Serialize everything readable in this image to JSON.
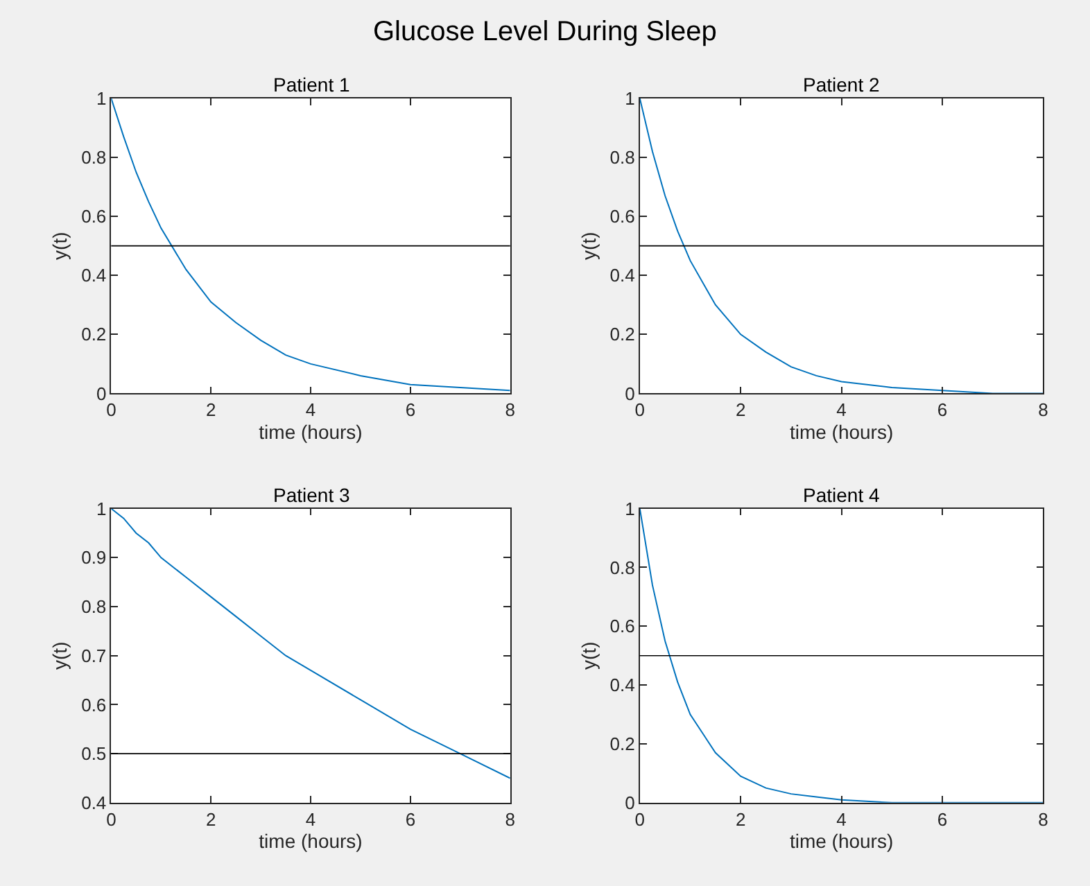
{
  "chart_data": [
    {
      "type": "other",
      "title": "Glucose Level During Sleep"
    },
    {
      "type": "line",
      "title": "Patient 1",
      "xlabel": "time (hours)",
      "ylabel": "y(t)",
      "x": [
        0,
        0.25,
        0.5,
        0.75,
        1,
        1.5,
        2,
        2.5,
        3,
        3.5,
        4,
        5,
        6,
        7,
        8
      ],
      "series": [
        {
          "color": "#0072bd",
          "values": [
            1,
            0.87,
            0.75,
            0.65,
            0.56,
            0.42,
            0.31,
            0.24,
            0.18,
            0.13,
            0.1,
            0.06,
            0.03,
            0.02,
            0.01
          ]
        }
      ],
      "xlim": [
        0,
        8
      ],
      "xticks": [
        0,
        2,
        4,
        6,
        8
      ],
      "ylim": [
        0,
        1
      ],
      "yticks": [
        0,
        0.2,
        0.4,
        0.6,
        0.8,
        1
      ],
      "ref_lines": [
        {
          "axis": "y",
          "value": 0.5,
          "color": "#000000"
        }
      ]
    },
    {
      "type": "line",
      "title": "Patient 2",
      "xlabel": "time (hours)",
      "ylabel": "y(t)",
      "x": [
        0,
        0.25,
        0.5,
        0.75,
        1,
        1.5,
        2,
        2.5,
        3,
        3.5,
        4,
        5,
        6,
        7,
        8
      ],
      "series": [
        {
          "color": "#0072bd",
          "values": [
            1,
            0.82,
            0.67,
            0.55,
            0.45,
            0.3,
            0.2,
            0.14,
            0.09,
            0.06,
            0.04,
            0.02,
            0.01,
            0,
            0
          ]
        }
      ],
      "xlim": [
        0,
        8
      ],
      "xticks": [
        0,
        2,
        4,
        6,
        8
      ],
      "ylim": [
        0,
        1
      ],
      "yticks": [
        0,
        0.2,
        0.4,
        0.6,
        0.8,
        1
      ],
      "ref_lines": [
        {
          "axis": "y",
          "value": 0.5,
          "color": "#000000"
        }
      ]
    },
    {
      "type": "line",
      "title": "Patient 3",
      "xlabel": "time (hours)",
      "ylabel": "y(t)",
      "x": [
        0,
        0.25,
        0.5,
        0.75,
        1,
        1.5,
        2,
        2.5,
        3,
        3.5,
        4,
        5,
        6,
        7,
        8
      ],
      "series": [
        {
          "color": "#0072bd",
          "values": [
            1,
            0.98,
            0.95,
            0.93,
            0.9,
            0.86,
            0.82,
            0.78,
            0.74,
            0.7,
            0.67,
            0.61,
            0.55,
            0.5,
            0.45
          ]
        }
      ],
      "xlim": [
        0,
        8
      ],
      "xticks": [
        0,
        2,
        4,
        6,
        8
      ],
      "ylim": [
        0.4,
        1
      ],
      "yticks": [
        0.4,
        0.5,
        0.6,
        0.7,
        0.8,
        0.9,
        1
      ],
      "ref_lines": [
        {
          "axis": "y",
          "value": 0.5,
          "color": "#000000"
        }
      ]
    },
    {
      "type": "line",
      "title": "Patient 4",
      "xlabel": "time (hours)",
      "ylabel": "y(t)",
      "x": [
        0,
        0.25,
        0.5,
        0.75,
        1,
        1.5,
        2,
        2.5,
        3,
        3.5,
        4,
        5,
        6,
        7,
        8
      ],
      "series": [
        {
          "color": "#0072bd",
          "values": [
            1,
            0.74,
            0.55,
            0.41,
            0.3,
            0.17,
            0.09,
            0.05,
            0.03,
            0.02,
            0.01,
            0,
            0,
            0,
            0
          ]
        }
      ],
      "xlim": [
        0,
        8
      ],
      "xticks": [
        0,
        2,
        4,
        6,
        8
      ],
      "ylim": [
        0,
        1
      ],
      "yticks": [
        0,
        0.2,
        0.4,
        0.6,
        0.8,
        1
      ],
      "ref_lines": [
        {
          "axis": "y",
          "value": 0.5,
          "color": "#000000"
        }
      ]
    }
  ]
}
